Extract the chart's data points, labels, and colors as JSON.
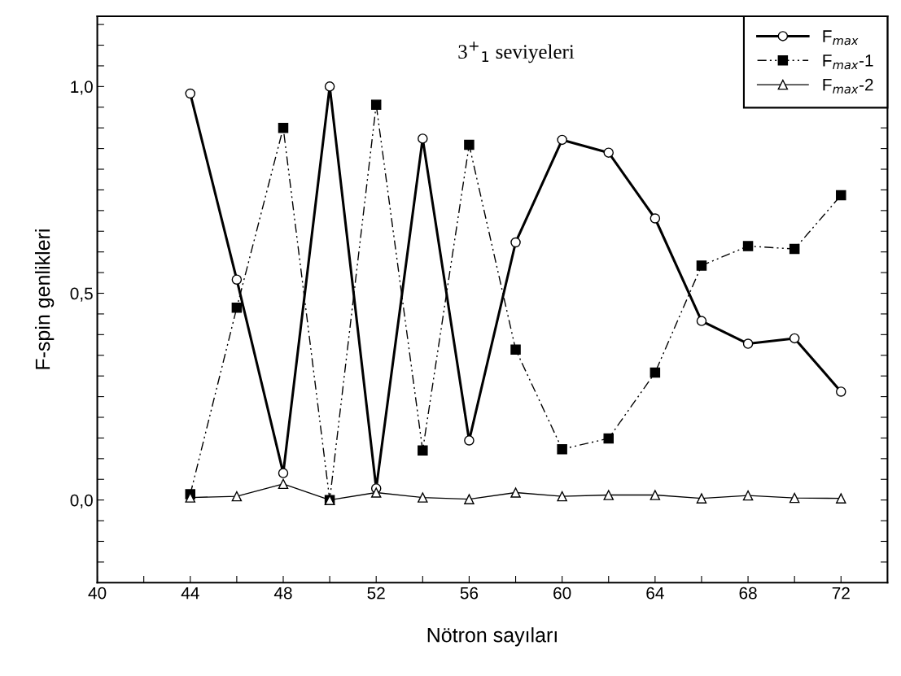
{
  "chart_data": {
    "type": "line",
    "title": "3$^{+}$$_{1}$ seviyeleri",
    "xlabel": "Nötron sayıları",
    "ylabel": "F-spin genlikleri",
    "x": [
      44,
      46,
      48,
      50,
      52,
      54,
      56,
      58,
      60,
      62,
      64,
      66,
      68,
      70,
      72
    ],
    "series": [
      {
        "name": "F$_{max}$",
        "color": "#000000",
        "marker": "circle",
        "line_style": "solid",
        "values": [
          0.983,
          0.533,
          0.065,
          1.0,
          0.028,
          0.874,
          0.144,
          0.623,
          0.871,
          0.84,
          0.681,
          0.433,
          0.378,
          0.391,
          0.262
        ]
      },
      {
        "name": "F$_{max}$-1",
        "color": "#000000",
        "marker": "square",
        "line_style": "dashed",
        "values": [
          0.014,
          0.465,
          0.9,
          0.0,
          0.956,
          0.12,
          0.859,
          0.364,
          0.123,
          0.149,
          0.308,
          0.567,
          0.614,
          0.607,
          0.737
        ]
      },
      {
        "name": "F$_{max}$-2",
        "color": "#000000",
        "marker": "triangle",
        "line_style": "solid",
        "values": [
          0.006,
          0.009,
          0.039,
          0.0,
          0.018,
          0.006,
          0.002,
          0.018,
          0.009,
          0.012,
          0.012,
          0.004,
          0.011,
          0.005,
          0.004
        ]
      }
    ],
    "xlim": [
      40,
      74
    ],
    "ylim": [
      -0.2,
      1.17
    ],
    "xticks": [
      40,
      {
        "value": 42,
        "label": null
      },
      44,
      {
        "value": 46,
        "label": null
      },
      48,
      {
        "value": 50,
        "label": null
      },
      52,
      {
        "value": 54,
        "label": null
      },
      56,
      {
        "value": 58,
        "label": null
      },
      60,
      {
        "value": 62,
        "label": null
      },
      64,
      {
        "value": 66,
        "label": null
      },
      68,
      {
        "value": 70,
        "label": null
      },
      72
    ],
    "yticks": [
      {
        "value": -0.15,
        "label": null
      },
      {
        "value": -0.1,
        "label": null
      },
      {
        "value": -0.05,
        "label": null
      },
      {
        "value": 0,
        "label": "0,0"
      },
      {
        "value": 0.05,
        "label": null
      },
      {
        "value": 0.1,
        "label": null
      },
      {
        "value": 0.15,
        "label": null
      },
      {
        "value": 0.2,
        "label": null
      },
      {
        "value": 0.25,
        "label": null
      },
      {
        "value": 0.3,
        "label": null
      },
      {
        "value": 0.35,
        "label": null
      },
      {
        "value": 0.4,
        "label": null
      },
      {
        "value": 0.45,
        "label": null
      },
      {
        "value": 0.5,
        "label": "0,5"
      },
      {
        "value": 0.55,
        "label": null
      },
      {
        "value": 0.6,
        "label": null
      },
      {
        "value": 0.65,
        "label": null
      },
      {
        "value": 0.7,
        "label": null
      },
      {
        "value": 0.75,
        "label": null
      },
      {
        "value": 0.8,
        "label": null
      },
      {
        "value": 0.85,
        "label": null
      },
      {
        "value": 0.9,
        "label": null
      },
      {
        "value": 0.95,
        "label": null
      },
      {
        "value": 1.0,
        "label": "1,0"
      },
      {
        "value": 1.05,
        "label": null
      },
      {
        "value": 1.1,
        "label": null
      },
      {
        "value": 1.15,
        "label": null
      }
    ],
    "grid": false,
    "legend": "top right"
  }
}
